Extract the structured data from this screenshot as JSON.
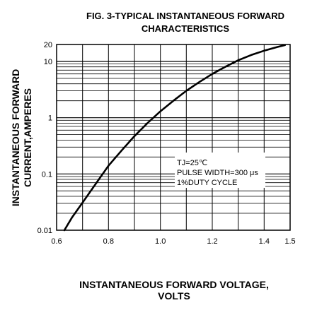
{
  "chart_data": {
    "type": "line",
    "title_line1": "FIG. 3-TYPICAL INSTANTANEOUS FORWARD",
    "title_line2": "CHARACTERISTICS",
    "xlabel_line1": "INSTANTANEOUS FORWARD VOLTAGE,",
    "xlabel_line2": "VOLTS",
    "ylabel_line1": "INSTANTANEOUS FORWARD",
    "ylabel_line2": "CURRENT,AMPERES",
    "xlim": [
      0.6,
      1.5
    ],
    "ylim": [
      0.01,
      20
    ],
    "yscale": "log",
    "grid": true,
    "x_ticks": [
      {
        "value": 0.6,
        "label": "0.6"
      },
      {
        "value": 0.8,
        "label": "0.8"
      },
      {
        "value": 1.0,
        "label": "1.0"
      },
      {
        "value": 1.2,
        "label": "1.2"
      },
      {
        "value": 1.4,
        "label": "1.4"
      },
      {
        "value": 1.5,
        "label": "1.5"
      }
    ],
    "y_ticks": [
      {
        "value": 0.01,
        "label": "0.01"
      },
      {
        "value": 0.1,
        "label": "0.1"
      },
      {
        "value": 1,
        "label": "1"
      },
      {
        "value": 10,
        "label": "10"
      },
      {
        "value": 20,
        "label": "20"
      }
    ],
    "series": [
      {
        "x": [
          0.63,
          0.66,
          0.7,
          0.75,
          0.8,
          0.85,
          0.9,
          0.95,
          1.0,
          1.05,
          1.1,
          1.15,
          1.2,
          1.25,
          1.3,
          1.35,
          1.4,
          1.45,
          1.48
        ],
        "y": [
          0.01,
          0.017,
          0.031,
          0.066,
          0.14,
          0.26,
          0.47,
          0.8,
          1.3,
          2.0,
          3.0,
          4.3,
          6.0,
          8.0,
          10.5,
          13.0,
          15.5,
          18.0,
          19.5
        ]
      }
    ],
    "annotation": {
      "line1": "TJ=25℃",
      "line2": "PULSE WIDTH=300 μs",
      "line3": "1%DUTY CYCLE"
    }
  }
}
